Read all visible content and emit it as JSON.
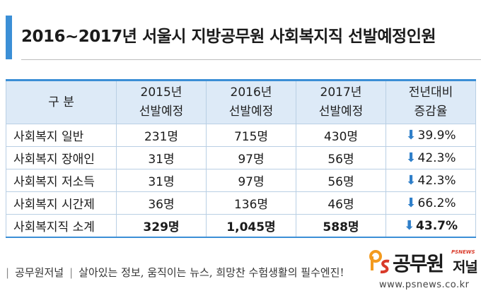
{
  "title": "2016~2017년 서울시 지방공무원 사회복지직 선발예정인원",
  "table": {
    "headers": [
      {
        "line1": "구  분",
        "line2": ""
      },
      {
        "line1": "2015년",
        "line2": "선발예정"
      },
      {
        "line1": "2016년",
        "line2": "선발예정"
      },
      {
        "line1": "2017년",
        "line2": "선발예정"
      },
      {
        "line1": "전년대비",
        "line2": "증감율"
      }
    ],
    "rows": [
      {
        "label": "사회복지 일반",
        "y2015": "231명",
        "y2016": "715명",
        "y2017": "430명",
        "change": "39.9%"
      },
      {
        "label": "사회복지 장애인",
        "y2015": "31명",
        "y2016": "97명",
        "y2017": "56명",
        "change": "42.3%"
      },
      {
        "label": "사회복지 저소득",
        "y2015": "31명",
        "y2016": "97명",
        "y2017": "56명",
        "change": "42.3%"
      },
      {
        "label": "사회복지 시간제",
        "y2015": "36명",
        "y2016": "136명",
        "y2017": "46명",
        "change": "66.2%"
      }
    ],
    "total": {
      "label": "사회복지직 소계",
      "y2015": "329명",
      "y2016": "1,045명",
      "y2017": "588명",
      "change": "43.7%"
    },
    "change_icon": "down-arrow-icon",
    "change_symbol": "⬇"
  },
  "footer": {
    "brand": "공무원저널",
    "slogan": "살아있는 정보, 움직이는 뉴스, 희망찬 수험생활의 필수엔진!"
  },
  "logo": {
    "main": "공무원",
    "small": "저널",
    "tag": "PSNEWS",
    "url": "www.psnews.co.kr"
  },
  "colors": {
    "accent": "#3b8fd6",
    "header_bg": "#ddeaf7",
    "logo_orange": "#f39a1e",
    "logo_red": "#d93a2a"
  }
}
